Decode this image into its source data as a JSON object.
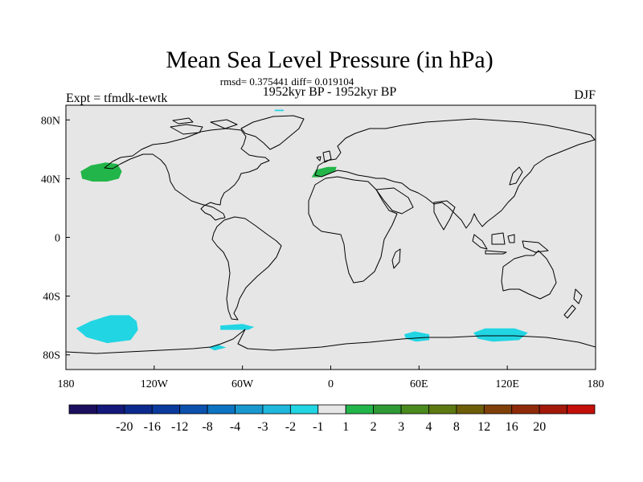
{
  "chart_data": {
    "type": "heatmap",
    "title": "Mean Sea Level Pressure (in hPa)",
    "stats_line": "rmsd= 0.375441 diff= 0.019104",
    "subtitle": "1952kyr BP - 1952kyr BP",
    "left_label": "Expt = tfmdk-tewtk",
    "right_label": "DJF",
    "xlim": [
      -180,
      180
    ],
    "ylim": [
      -90,
      90
    ],
    "x_ticks": [
      {
        "value": -180,
        "label": "180"
      },
      {
        "value": -120,
        "label": "120W"
      },
      {
        "value": -60,
        "label": "60W"
      },
      {
        "value": 0,
        "label": "0"
      },
      {
        "value": 60,
        "label": "60E"
      },
      {
        "value": 120,
        "label": "120E"
      },
      {
        "value": 180,
        "label": "180"
      }
    ],
    "y_ticks": [
      {
        "value": 80,
        "label": "80N"
      },
      {
        "value": 40,
        "label": "40N"
      },
      {
        "value": 0,
        "label": "0"
      },
      {
        "value": -40,
        "label": "40S"
      },
      {
        "value": -80,
        "label": "80S"
      }
    ],
    "colorbar": {
      "colors": [
        "#1b0f5e",
        "#13187a",
        "#0c2a8e",
        "#0b3a9e",
        "#0b51ad",
        "#0d74c2",
        "#1898cf",
        "#1fb7dc",
        "#22d5e3",
        "#e6e6e6",
        "#22b549",
        "#2e9a36",
        "#4a8a1e",
        "#5d7a12",
        "#6e5e0a",
        "#80400a",
        "#8f2b0a",
        "#a4180a",
        "#c40f0a"
      ],
      "labels": [
        "-20",
        "-16",
        "-12",
        "-8",
        "-4",
        "-3",
        "-2",
        "-1",
        "1",
        "2",
        "3",
        "4",
        "8",
        "12",
        "16",
        "20"
      ]
    },
    "anomaly_regions": [
      {
        "name": "north-pacific-high",
        "sign": "positive",
        "color": "#22b549",
        "points": [
          [
            -170,
            45
          ],
          [
            -163,
            49
          ],
          [
            -153,
            51
          ],
          [
            -145,
            50
          ],
          [
            -142,
            45
          ],
          [
            -144,
            40
          ],
          [
            -152,
            38
          ],
          [
            -162,
            38
          ],
          [
            -169,
            40
          ]
        ]
      },
      {
        "name": "iberia",
        "sign": "positive",
        "color": "#22b549",
        "points": [
          [
            -13,
            41
          ],
          [
            -10,
            46
          ],
          [
            -2,
            48
          ],
          [
            4,
            48
          ],
          [
            3,
            45
          ],
          [
            -2,
            43
          ],
          [
            -8,
            41
          ]
        ]
      },
      {
        "name": "south-pacific-low",
        "sign": "negative",
        "color": "#22d5e3",
        "points": [
          [
            -173,
            -62
          ],
          [
            -163,
            -57
          ],
          [
            -150,
            -53
          ],
          [
            -137,
            -53
          ],
          [
            -132,
            -57
          ],
          [
            -131,
            -63
          ],
          [
            -136,
            -70
          ],
          [
            -152,
            -72
          ],
          [
            -166,
            -68
          ]
        ]
      },
      {
        "name": "drake-passage",
        "sign": "negative",
        "color": "#22d5e3",
        "points": [
          [
            -75,
            -60
          ],
          [
            -60,
            -59
          ],
          [
            -52,
            -61
          ],
          [
            -56,
            -63
          ],
          [
            -75,
            -63
          ]
        ]
      },
      {
        "name": "antarctic-peninsula",
        "sign": "negative",
        "color": "#22d5e3",
        "points": [
          [
            -83,
            -75
          ],
          [
            -77,
            -73
          ],
          [
            -71,
            -75
          ],
          [
            -79,
            -77
          ]
        ]
      },
      {
        "name": "indian-ocean-sector",
        "sign": "negative",
        "color": "#22d5e3",
        "points": [
          [
            50,
            -66
          ],
          [
            57,
            -64
          ],
          [
            67,
            -66
          ],
          [
            67,
            -70
          ],
          [
            58,
            -71
          ],
          [
            51,
            -69
          ]
        ]
      },
      {
        "name": "east-antarctica",
        "sign": "negative",
        "color": "#22d5e3",
        "points": [
          [
            97,
            -65
          ],
          [
            105,
            -62
          ],
          [
            125,
            -62
          ],
          [
            134,
            -65
          ],
          [
            128,
            -70
          ],
          [
            110,
            -71
          ],
          [
            100,
            -69
          ]
        ]
      },
      {
        "name": "arctic-spot",
        "sign": "negative",
        "color": "#22d5e3",
        "points": [
          [
            -38,
            87
          ],
          [
            -32,
            87
          ],
          [
            -32,
            86
          ],
          [
            -38,
            86
          ]
        ]
      }
    ]
  }
}
